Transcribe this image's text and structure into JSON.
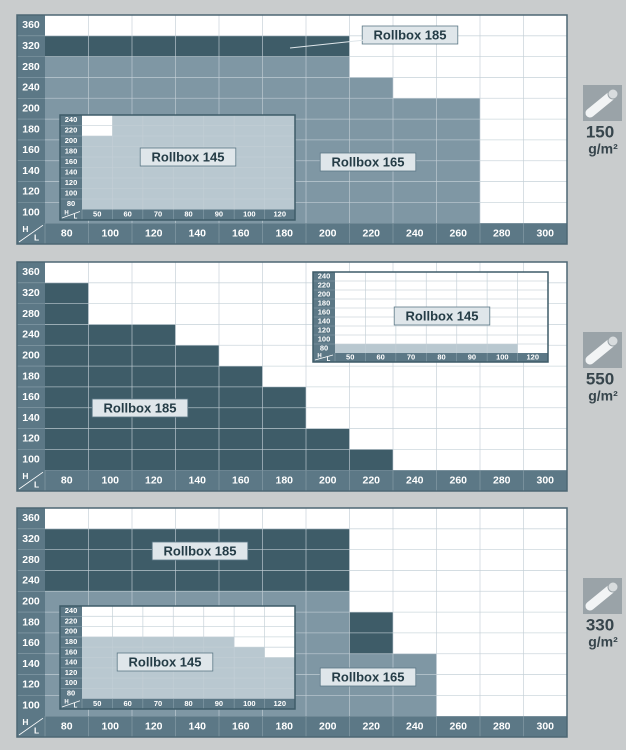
{
  "panels": [
    {
      "weight": {
        "value": "150",
        "unit": "g/m²"
      },
      "corner": [
        "H",
        "L"
      ],
      "h_labels": [
        360,
        320,
        280,
        240,
        200,
        180,
        160,
        140,
        120,
        100
      ],
      "l_labels": [
        80,
        100,
        120,
        140,
        160,
        180,
        200,
        220,
        240,
        260,
        280,
        300
      ],
      "models": [
        {
          "name": "Rollbox 165",
          "color": "#7f97a4",
          "areas": [
            {
              "l": [
                80,
                200
              ],
              "h": [
                100,
                280
              ]
            },
            {
              "l": [
                220,
                220
              ],
              "h": [
                100,
                240
              ]
            },
            {
              "l": [
                240,
                260
              ],
              "h": [
                100,
                200
              ]
            }
          ]
        },
        {
          "name": "Rollbox 185",
          "color": "#3e5c68",
          "areas": [
            {
              "l": [
                80,
                200
              ],
              "h": [
                320,
                320
              ]
            }
          ]
        }
      ],
      "inset": {
        "corner": [
          "H",
          "L"
        ],
        "h_labels": [
          240,
          220,
          200,
          180,
          160,
          140,
          120,
          100,
          80
        ],
        "l_labels": [
          50,
          60,
          70,
          80,
          90,
          100,
          120
        ],
        "models": [
          {
            "name": "Rollbox 145",
            "color": "#b9c8d0",
            "areas": [
              {
                "l": [
                  60,
                  120
                ],
                "h": [
                  80,
                  240
                ]
              },
              {
                "l": [
                  50,
                  50
                ],
                "h": [
                  80,
                  200
                ]
              }
            ]
          }
        ]
      }
    },
    {
      "weight": {
        "value": "550",
        "unit": "g/m²"
      },
      "corner": [
        "H",
        "L"
      ],
      "h_labels": [
        360,
        320,
        280,
        240,
        200,
        180,
        160,
        140,
        120,
        100
      ],
      "l_labels": [
        80,
        100,
        120,
        140,
        160,
        180,
        200,
        220,
        240,
        260,
        280,
        300
      ],
      "models": [
        {
          "name": "Rollbox 185",
          "color": "#3e5c68",
          "areas": [
            {
              "l": [
                80,
                80
              ],
              "h": [
                100,
                320
              ]
            },
            {
              "l": [
                100,
                120
              ],
              "h": [
                100,
                240
              ]
            },
            {
              "l": [
                140,
                140
              ],
              "h": [
                100,
                200
              ]
            },
            {
              "l": [
                160,
                160
              ],
              "h": [
                100,
                180
              ]
            },
            {
              "l": [
                180,
                180
              ],
              "h": [
                100,
                160
              ]
            },
            {
              "l": [
                200,
                200
              ],
              "h": [
                100,
                120
              ]
            },
            {
              "l": [
                220,
                220
              ],
              "h": [
                100,
                100
              ]
            }
          ]
        }
      ],
      "inset": {
        "corner": [
          "H",
          "L"
        ],
        "h_labels": [
          240,
          220,
          200,
          180,
          160,
          140,
          120,
          100,
          80
        ],
        "l_labels": [
          50,
          60,
          70,
          80,
          90,
          100,
          120
        ],
        "models": [
          {
            "name": "Rollbox 145",
            "color": "#b9c8d0",
            "areas": [
              {
                "l": [
                  50,
                  100
                ],
                "h": [
                  80,
                  80
                ]
              }
            ]
          }
        ]
      }
    },
    {
      "weight": {
        "value": "330",
        "unit": "g/m²"
      },
      "corner": [
        "H",
        "L"
      ],
      "h_labels": [
        360,
        320,
        280,
        240,
        200,
        180,
        160,
        140,
        120,
        100
      ],
      "l_labels": [
        80,
        100,
        120,
        140,
        160,
        180,
        200,
        220,
        240,
        260,
        280,
        300
      ],
      "models": [
        {
          "name": "Rollbox 185",
          "color": "#3e5c68",
          "areas": [
            {
              "l": [
                80,
                200
              ],
              "h": [
                240,
                320
              ]
            },
            {
              "l": [
                220,
                220
              ],
              "h": [
                160,
                180
              ]
            }
          ]
        },
        {
          "name": "Rollbox 165",
          "color": "#7f97a4",
          "areas": [
            {
              "l": [
                80,
                200
              ],
              "h": [
                100,
                200
              ]
            },
            {
              "l": [
                220,
                240
              ],
              "h": [
                100,
                140
              ]
            }
          ]
        }
      ],
      "inset": {
        "corner": [
          "H",
          "L"
        ],
        "h_labels": [
          240,
          220,
          200,
          180,
          160,
          140,
          120,
          100,
          80
        ],
        "l_labels": [
          50,
          60,
          70,
          80,
          90,
          100,
          120
        ],
        "models": [
          {
            "name": "Rollbox 145",
            "color": "#b9c8d0",
            "areas": [
              {
                "l": [
                  50,
                  90
                ],
                "h": [
                  80,
                  180
                ]
              },
              {
                "l": [
                  100,
                  100
                ],
                "h": [
                  80,
                  160
                ]
              },
              {
                "l": [
                  120,
                  120
                ],
                "h": [
                  80,
                  140
                ]
              }
            ]
          }
        ]
      }
    }
  ]
}
